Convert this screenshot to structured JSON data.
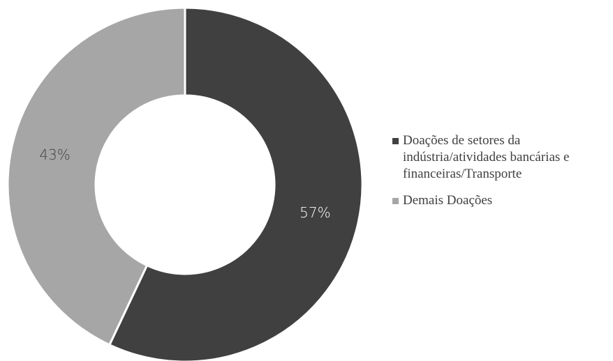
{
  "chart_data": {
    "type": "donut",
    "categories": [
      "Doações de setores da indústria/atividades bancárias e financeiras/Transporte",
      "Demais Doações"
    ],
    "values": [
      57,
      43
    ],
    "value_labels": [
      "57%",
      "43%"
    ],
    "colors": [
      "#404040",
      "#a6a6a6"
    ],
    "legend": "right"
  }
}
